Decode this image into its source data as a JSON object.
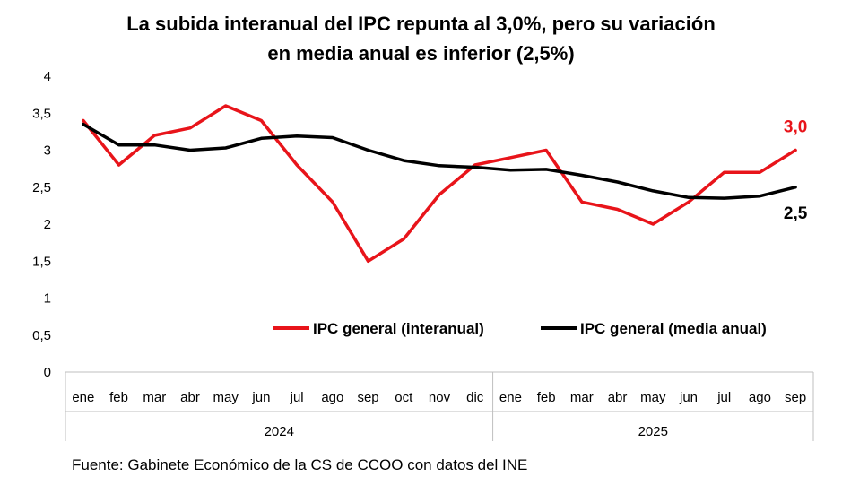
{
  "title_line1": "La subida interanual del IPC repunta al 3,0%, pero su variación",
  "title_line2": "en media anual es inferior (2,5%)",
  "source": "Fuente: Gabinete Económico de la CS de CCOO con datos del INE",
  "chart_data": {
    "type": "line",
    "months": [
      "ene",
      "feb",
      "mar",
      "abr",
      "may",
      "jun",
      "jul",
      "ago",
      "sep",
      "oct",
      "nov",
      "dic",
      "ene",
      "feb",
      "mar",
      "abr",
      "may",
      "jun",
      "jul",
      "ago",
      "sep"
    ],
    "years": [
      {
        "label": "2024",
        "months": 12
      },
      {
        "label": "2025",
        "months": 9
      }
    ],
    "ylim": [
      0,
      4
    ],
    "yticks": [
      "0",
      "0,5",
      "1",
      "1,5",
      "2",
      "2,5",
      "3",
      "3,5",
      "4"
    ],
    "series": [
      {
        "name": "IPC general (interanual)",
        "color": "#e8141a",
        "values": [
          3.4,
          2.8,
          3.2,
          3.3,
          3.6,
          3.4,
          2.8,
          2.3,
          1.5,
          1.8,
          2.4,
          2.8,
          2.9,
          3.0,
          2.3,
          2.2,
          2.0,
          2.3,
          2.7,
          2.7,
          3.0
        ],
        "end_label": "3,0"
      },
      {
        "name": "IPC general (media anual)",
        "color": "#000000",
        "values": [
          3.35,
          3.07,
          3.07,
          3.0,
          3.03,
          3.16,
          3.19,
          3.17,
          3.0,
          2.86,
          2.79,
          2.77,
          2.73,
          2.74,
          2.66,
          2.57,
          2.45,
          2.36,
          2.35,
          2.38,
          2.5
        ],
        "end_label": "2,5"
      }
    ],
    "grid": false,
    "legend": "center"
  }
}
